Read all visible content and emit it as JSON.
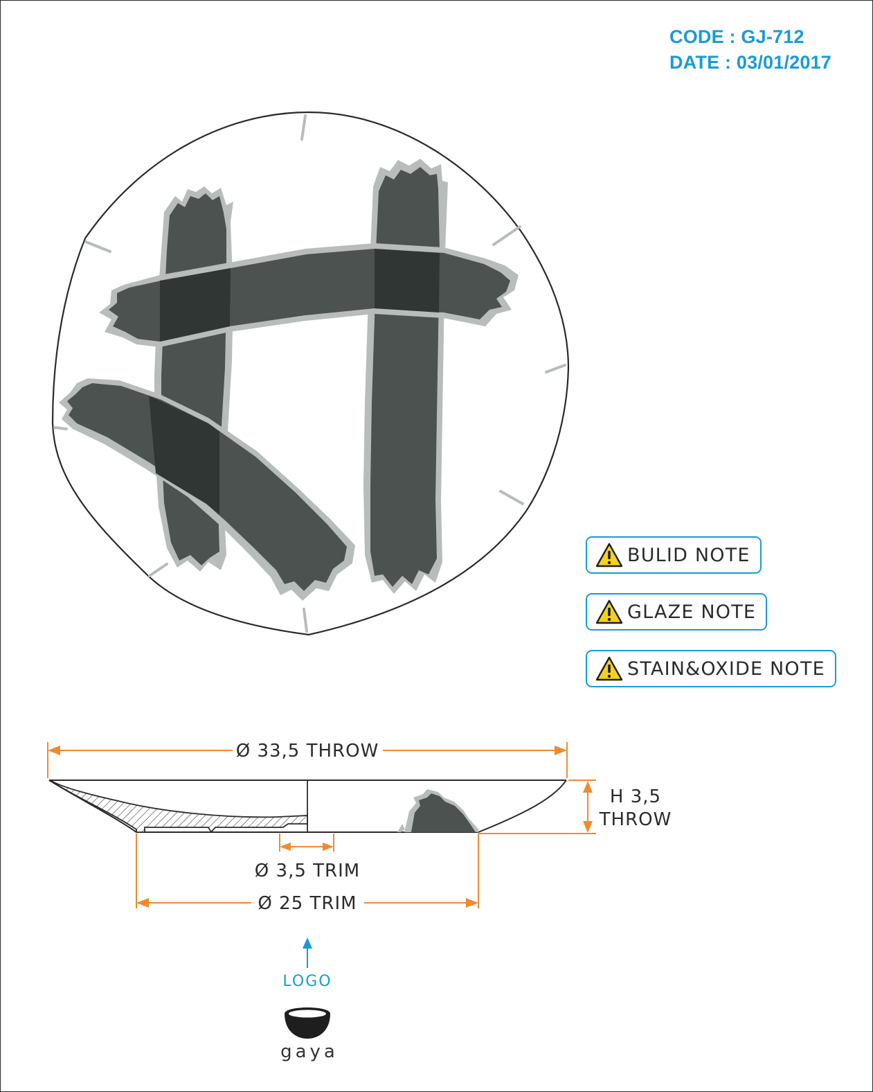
{
  "header": {
    "code": "CODE : GJ-712",
    "date": "DATE : 03/01/2017"
  },
  "notes": [
    {
      "label": "BULID NOTE",
      "icon": "warning-icon"
    },
    {
      "label": "GLAZE NOTE",
      "icon": "warning-icon"
    },
    {
      "label": "STAIN&OXIDE NOTE",
      "icon": "warning-icon"
    }
  ],
  "dimensions": {
    "throw_diameter": "Ø 33,5 THROW",
    "height_line1": "H 3,5",
    "height_line2": "THROW",
    "foot_trim": "Ø 3,5 TRIM",
    "base_trim": "Ø 25 TRIM"
  },
  "logo_marker": {
    "label": "LOGO",
    "icon": "arrow-up-icon"
  },
  "brand": {
    "name": "gaya",
    "icon": "bowl-logo-icon"
  },
  "colors": {
    "accent_blue": "#1a9ad6",
    "dimension_orange": "#f08a30",
    "brush_gray": "#4b5250",
    "brush_overlap": "#2f3633",
    "brush_edge": "#b5bbb8",
    "warning_yellow": "#f2d21e"
  }
}
